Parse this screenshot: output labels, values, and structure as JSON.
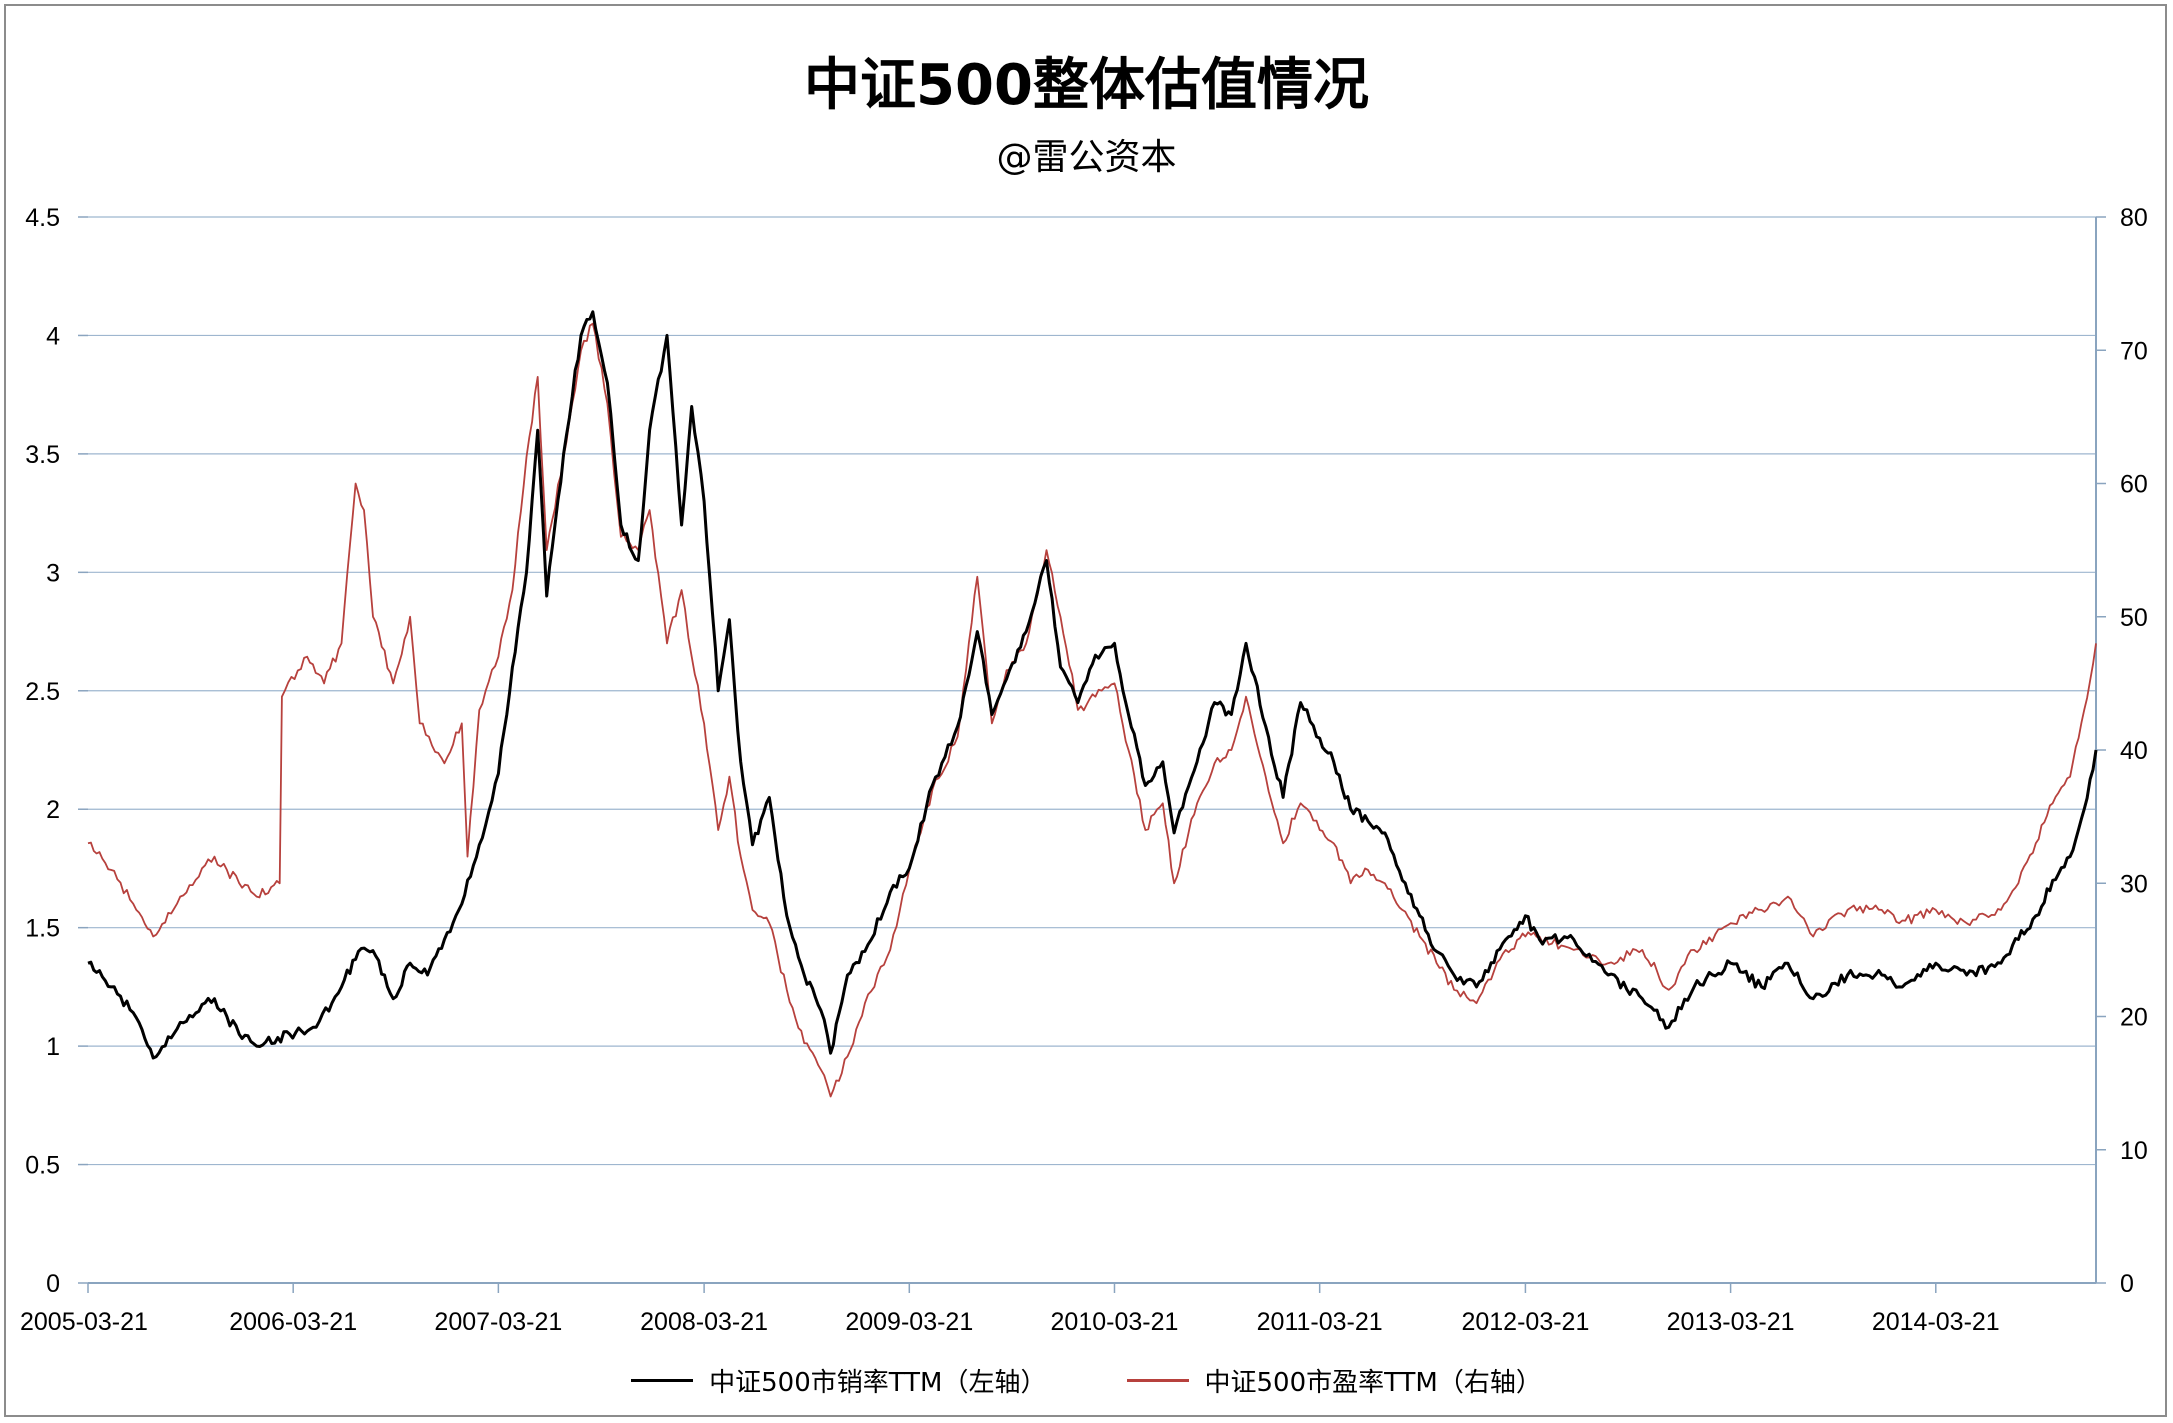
{
  "chart_data": {
    "type": "line",
    "title": "中证500整体估值情况",
    "subtitle": "@雷公资本",
    "x_tick_labels": [
      "2005-03-21",
      "2006-03-21",
      "2007-03-21",
      "2008-03-21",
      "2009-03-21",
      "2010-03-21",
      "2011-03-21",
      "2012-03-21",
      "2013-03-21",
      "2014-03-21"
    ],
    "x_range": [
      "2005-03-21",
      "2014-12-31"
    ],
    "y_left": {
      "ylim": [
        0,
        4.5
      ],
      "ticks": [
        "0",
        "0.5",
        "1",
        "1.5",
        "2",
        "2.5",
        "3",
        "3.5",
        "4",
        "4.5"
      ]
    },
    "y_right": {
      "ylim": [
        0,
        80
      ],
      "ticks": [
        "0",
        "10",
        "20",
        "30",
        "40",
        "50",
        "60",
        "70",
        "80"
      ]
    },
    "grid": true,
    "legend_position": "bottom",
    "series": [
      {
        "name": "中证500市销率TTM（左轴）",
        "axis": "left",
        "color": "#000000",
        "points": [
          [
            "2005-03-21",
            1.35
          ],
          [
            "2005-05-01",
            1.25
          ],
          [
            "2005-06-15",
            1.12
          ],
          [
            "2005-07-15",
            0.95
          ],
          [
            "2005-09-01",
            1.1
          ],
          [
            "2005-11-01",
            1.2
          ],
          [
            "2005-12-15",
            1.05
          ],
          [
            "2006-01-15",
            1.0
          ],
          [
            "2006-03-15",
            1.05
          ],
          [
            "2006-05-01",
            1.08
          ],
          [
            "2006-06-15",
            1.25
          ],
          [
            "2006-07-15",
            1.4
          ],
          [
            "2006-08-15",
            1.38
          ],
          [
            "2006-09-15",
            1.2
          ],
          [
            "2006-10-15",
            1.35
          ],
          [
            "2006-11-15",
            1.3
          ],
          [
            "2006-12-15",
            1.45
          ],
          [
            "2007-01-15",
            1.6
          ],
          [
            "2007-02-15",
            1.85
          ],
          [
            "2007-03-21",
            2.15
          ],
          [
            "2007-04-15",
            2.6
          ],
          [
            "2007-05-10",
            3.0
          ],
          [
            "2007-05-30",
            3.6
          ],
          [
            "2007-06-15",
            2.9
          ],
          [
            "2007-07-15",
            3.5
          ],
          [
            "2007-08-15",
            4.0
          ],
          [
            "2007-09-05",
            4.1
          ],
          [
            "2007-10-01",
            3.8
          ],
          [
            "2007-10-25",
            3.2
          ],
          [
            "2007-11-25",
            3.05
          ],
          [
            "2007-12-15",
            3.6
          ],
          [
            "2008-01-15",
            4.0
          ],
          [
            "2008-02-10",
            3.2
          ],
          [
            "2008-02-28",
            3.7
          ],
          [
            "2008-03-21",
            3.3
          ],
          [
            "2008-04-15",
            2.5
          ],
          [
            "2008-05-05",
            2.8
          ],
          [
            "2008-05-25",
            2.2
          ],
          [
            "2008-06-15",
            1.85
          ],
          [
            "2008-07-15",
            2.05
          ],
          [
            "2008-08-15",
            1.55
          ],
          [
            "2008-09-15",
            1.3
          ],
          [
            "2008-10-15",
            1.15
          ],
          [
            "2008-11-01",
            0.97
          ],
          [
            "2008-12-01",
            1.3
          ],
          [
            "2009-01-01",
            1.4
          ],
          [
            "2009-02-15",
            1.65
          ],
          [
            "2009-03-21",
            1.75
          ],
          [
            "2009-05-01",
            2.1
          ],
          [
            "2009-06-15",
            2.35
          ],
          [
            "2009-07-20",
            2.75
          ],
          [
            "2009-08-15",
            2.4
          ],
          [
            "2009-09-10",
            2.55
          ],
          [
            "2009-10-15",
            2.75
          ],
          [
            "2009-11-20",
            3.05
          ],
          [
            "2009-12-15",
            2.6
          ],
          [
            "2010-01-15",
            2.45
          ],
          [
            "2010-02-15",
            2.65
          ],
          [
            "2010-03-21",
            2.7
          ],
          [
            "2010-04-15",
            2.4
          ],
          [
            "2010-05-15",
            2.1
          ],
          [
            "2010-06-15",
            2.2
          ],
          [
            "2010-07-05",
            1.9
          ],
          [
            "2010-08-15",
            2.2
          ],
          [
            "2010-09-15",
            2.45
          ],
          [
            "2010-10-15",
            2.4
          ],
          [
            "2010-11-10",
            2.7
          ],
          [
            "2010-12-15",
            2.35
          ],
          [
            "2011-01-15",
            2.05
          ],
          [
            "2011-02-15",
            2.45
          ],
          [
            "2011-03-21",
            2.3
          ],
          [
            "2011-04-15",
            2.2
          ],
          [
            "2011-05-15",
            2.0
          ],
          [
            "2011-06-15",
            1.95
          ],
          [
            "2011-07-15",
            1.9
          ],
          [
            "2011-08-15",
            1.7
          ],
          [
            "2011-09-15",
            1.55
          ],
          [
            "2011-10-15",
            1.4
          ],
          [
            "2011-11-15",
            1.3
          ],
          [
            "2011-12-25",
            1.25
          ],
          [
            "2012-02-15",
            1.45
          ],
          [
            "2012-03-21",
            1.55
          ],
          [
            "2012-04-15",
            1.45
          ],
          [
            "2012-06-15",
            1.45
          ],
          [
            "2012-08-15",
            1.3
          ],
          [
            "2012-10-15",
            1.2
          ],
          [
            "2012-12-01",
            1.08
          ],
          [
            "2013-01-15",
            1.25
          ],
          [
            "2013-03-21",
            1.35
          ],
          [
            "2013-05-15",
            1.25
          ],
          [
            "2013-07-01",
            1.35
          ],
          [
            "2013-08-15",
            1.2
          ],
          [
            "2013-10-15",
            1.3
          ],
          [
            "2013-12-15",
            1.3
          ],
          [
            "2014-01-15",
            1.25
          ],
          [
            "2014-03-21",
            1.35
          ],
          [
            "2014-05-15",
            1.3
          ],
          [
            "2014-07-15",
            1.35
          ],
          [
            "2014-08-15",
            1.45
          ],
          [
            "2014-09-15",
            1.55
          ],
          [
            "2014-10-15",
            1.7
          ],
          [
            "2014-11-15",
            1.8
          ],
          [
            "2014-12-10",
            2.0
          ],
          [
            "2014-12-31",
            2.25
          ]
        ]
      },
      {
        "name": "中证500市盈率TTM（右轴）",
        "axis": "right",
        "color": "#b7413d",
        "points": [
          [
            "2005-03-21",
            33
          ],
          [
            "2005-05-01",
            31
          ],
          [
            "2005-06-15",
            28
          ],
          [
            "2005-07-15",
            26
          ],
          [
            "2005-09-01",
            29
          ],
          [
            "2005-11-01",
            32
          ],
          [
            "2005-12-15",
            30
          ],
          [
            "2006-01-15",
            29
          ],
          [
            "2006-02-25",
            30
          ],
          [
            "2006-03-01",
            44
          ],
          [
            "2006-04-15",
            47
          ],
          [
            "2006-05-15",
            45
          ],
          [
            "2006-06-15",
            48
          ],
          [
            "2006-07-10",
            60
          ],
          [
            "2006-07-25",
            58
          ],
          [
            "2006-08-10",
            50
          ],
          [
            "2006-09-15",
            45
          ],
          [
            "2006-10-15",
            50
          ],
          [
            "2006-11-01",
            42
          ],
          [
            "2006-12-15",
            39
          ],
          [
            "2007-01-15",
            42
          ],
          [
            "2007-01-25",
            32
          ],
          [
            "2007-02-15",
            43
          ],
          [
            "2007-03-21",
            47
          ],
          [
            "2007-04-15",
            52
          ],
          [
            "2007-05-10",
            62
          ],
          [
            "2007-05-30",
            68
          ],
          [
            "2007-06-15",
            55
          ],
          [
            "2007-07-15",
            62
          ],
          [
            "2007-08-15",
            70
          ],
          [
            "2007-09-05",
            72
          ],
          [
            "2007-10-01",
            66
          ],
          [
            "2007-10-25",
            56
          ],
          [
            "2007-11-25",
            55
          ],
          [
            "2007-12-15",
            58
          ],
          [
            "2008-01-15",
            48
          ],
          [
            "2008-02-10",
            52
          ],
          [
            "2008-02-28",
            47
          ],
          [
            "2008-03-21",
            42
          ],
          [
            "2008-04-15",
            34
          ],
          [
            "2008-05-05",
            38
          ],
          [
            "2008-05-25",
            32
          ],
          [
            "2008-06-15",
            28
          ],
          [
            "2008-07-15",
            27
          ],
          [
            "2008-08-15",
            22
          ],
          [
            "2008-09-15",
            18
          ],
          [
            "2008-10-15",
            16
          ],
          [
            "2008-11-01",
            14
          ],
          [
            "2008-12-01",
            17
          ],
          [
            "2009-01-01",
            21
          ],
          [
            "2009-02-15",
            25
          ],
          [
            "2009-03-21",
            31
          ],
          [
            "2009-05-01",
            37
          ],
          [
            "2009-06-15",
            41
          ],
          [
            "2009-07-20",
            53
          ],
          [
            "2009-08-15",
            42
          ],
          [
            "2009-09-10",
            46
          ],
          [
            "2009-10-15",
            48
          ],
          [
            "2009-11-20",
            55
          ],
          [
            "2009-12-15",
            50
          ],
          [
            "2010-01-15",
            43
          ],
          [
            "2010-02-15",
            44
          ],
          [
            "2010-03-21",
            45
          ],
          [
            "2010-04-15",
            40
          ],
          [
            "2010-05-15",
            34
          ],
          [
            "2010-06-15",
            36
          ],
          [
            "2010-07-05",
            30
          ],
          [
            "2010-08-15",
            36
          ],
          [
            "2010-09-15",
            39
          ],
          [
            "2010-10-15",
            40
          ],
          [
            "2010-11-10",
            44
          ],
          [
            "2010-12-15",
            38
          ],
          [
            "2011-01-15",
            33
          ],
          [
            "2011-02-15",
            36
          ],
          [
            "2011-03-21",
            34
          ],
          [
            "2011-04-15",
            33
          ],
          [
            "2011-05-15",
            30
          ],
          [
            "2011-06-15",
            31
          ],
          [
            "2011-07-15",
            30
          ],
          [
            "2011-08-15",
            28
          ],
          [
            "2011-09-15",
            26
          ],
          [
            "2011-10-15",
            24
          ],
          [
            "2011-11-15",
            22
          ],
          [
            "2011-12-25",
            21
          ],
          [
            "2012-02-15",
            25
          ],
          [
            "2012-03-21",
            26
          ],
          [
            "2012-04-15",
            26
          ],
          [
            "2012-06-15",
            25
          ],
          [
            "2012-08-15",
            24
          ],
          [
            "2012-10-15",
            25
          ],
          [
            "2012-12-01",
            22
          ],
          [
            "2013-01-15",
            25
          ],
          [
            "2013-03-21",
            27
          ],
          [
            "2013-05-15",
            28
          ],
          [
            "2013-07-01",
            29
          ],
          [
            "2013-08-15",
            26
          ],
          [
            "2013-10-15",
            28
          ],
          [
            "2013-12-15",
            28
          ],
          [
            "2014-01-15",
            27
          ],
          [
            "2014-03-21",
            28
          ],
          [
            "2014-05-15",
            27
          ],
          [
            "2014-07-15",
            28
          ],
          [
            "2014-08-15",
            30
          ],
          [
            "2014-09-15",
            33
          ],
          [
            "2014-10-15",
            36
          ],
          [
            "2014-11-15",
            38
          ],
          [
            "2014-12-10",
            43
          ],
          [
            "2014-12-31",
            48
          ]
        ]
      }
    ]
  }
}
